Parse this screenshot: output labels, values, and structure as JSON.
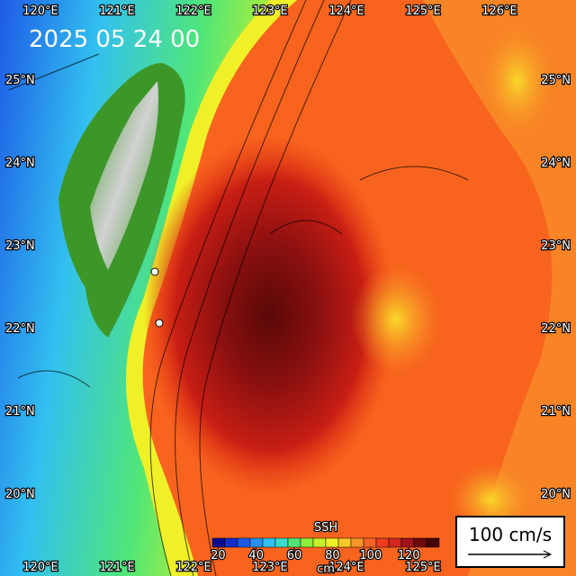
{
  "title": "2025 05 24 00",
  "lon_labels_top": [
    "120°E",
    "121°E",
    "122°E",
    "123°E",
    "124°E",
    "125°E",
    "126°E"
  ],
  "lon_labels_bottom": [
    "120°E",
    "121°E",
    "122°E",
    "123°E",
    "124°E",
    "125°E"
  ],
  "lat_labels": [
    "25°N",
    "24°N",
    "23°N",
    "22°N",
    "21°N",
    "20°N"
  ],
  "colorbar": {
    "label": "SSH",
    "unit": "cm",
    "range": [
      17,
      136
    ],
    "ticks": [
      20,
      40,
      60,
      80,
      100,
      120
    ],
    "colors": [
      "#0a0a8c",
      "#1430c8",
      "#1e5ae6",
      "#2890f0",
      "#32c0f0",
      "#3cdcc8",
      "#50e678",
      "#8cf03c",
      "#c8f028",
      "#f0f028",
      "#f8c828",
      "#f89628",
      "#f86428",
      "#f03c1e",
      "#d2281e",
      "#a0141e",
      "#6e0a0a",
      "#460505"
    ]
  },
  "scale_label": "100 cm/s"
}
